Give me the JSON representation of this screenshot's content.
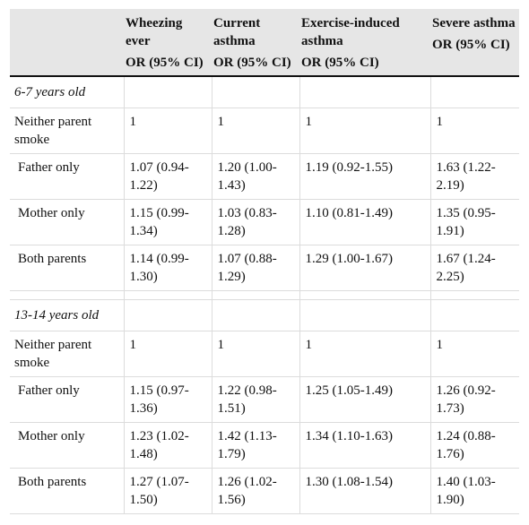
{
  "table": {
    "headers": [
      {
        "title": "",
        "ci": ""
      },
      {
        "title": "Wheezing ever",
        "ci": "OR (95% CI)"
      },
      {
        "title": "Current asthma",
        "ci": "OR (95% CI)"
      },
      {
        "title": "Exercise-induced asthma",
        "ci": "OR (95% CI)"
      },
      {
        "title": "Severe asthma",
        "ci": "OR (95% CI)"
      }
    ],
    "groups": [
      {
        "label": "6-7 years old",
        "rows": [
          {
            "label": "Neither parent smoke",
            "values": [
              "1",
              "1",
              "1",
              "1"
            ]
          },
          {
            "label": "Father only",
            "values": [
              "1.07 (0.94-1.22)",
              "1.20 (1.00-1.43)",
              "1.19 (0.92-1.55)",
              "1.63 (1.22-2.19)"
            ]
          },
          {
            "label": "Mother only",
            "values": [
              "1.15 (0.99-1.34)",
              "1.03 (0.83-1.28)",
              "1.10 (0.81-1.49)",
              "1.35 (0.95-1.91)"
            ]
          },
          {
            "label": "Both parents",
            "values": [
              "1.14 (0.99-1.30)",
              "1.07 (0.88-1.29)",
              "1.29 (1.00-1.67)",
              "1.67 (1.24-2.25)"
            ]
          }
        ]
      },
      {
        "label": "13-14 years old",
        "rows": [
          {
            "label": "Neither parent smoke",
            "values": [
              "1",
              "1",
              "1",
              "1"
            ]
          },
          {
            "label": "Father only",
            "values": [
              "1.15 (0.97-1.36)",
              "1.22 (0.98-1.51)",
              "1.25 (1.05-1.49)",
              "1.26 (0.92-1.73)"
            ]
          },
          {
            "label": "Mother only",
            "values": [
              "1.23 (1.02-1.48)",
              "1.42 (1.13-1.79)",
              "1.34 (1.10-1.63)",
              "1.24 (0.88-1.76)"
            ]
          },
          {
            "label": "Both parents",
            "values": [
              "1.27 (1.07-1.50)",
              "1.26 (1.02-1.56)",
              "1.30 (1.08-1.54)",
              "1.40 (1.03-1.90)"
            ]
          }
        ]
      }
    ]
  }
}
